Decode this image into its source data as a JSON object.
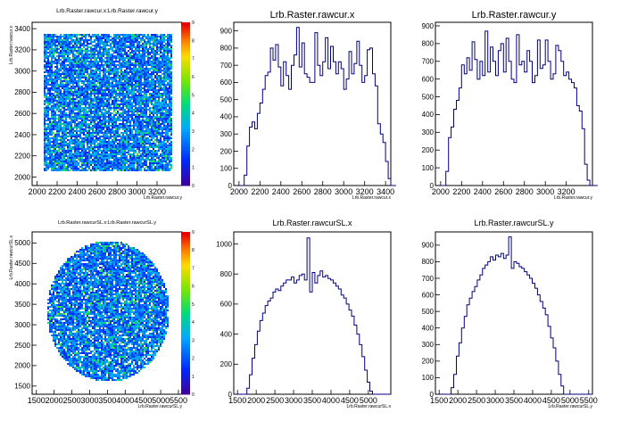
{
  "chart_data": [
    {
      "type": "heatmap",
      "title": "Lrb.Raster.rawcur.x:Lrb.Raster.rawcur.y",
      "xlabel": "Lrb.Raster.rawcur.y",
      "ylabel": "Lrb.Raster.rawcur.x",
      "xlim": [
        1950,
        3450
      ],
      "ylim": [
        1920,
        3460
      ],
      "x_ticks": [
        2000,
        2200,
        2400,
        2600,
        2800,
        3000,
        3200
      ],
      "x_tick_labels": [
        "2000",
        "2200",
        "2400",
        "2600",
        "2800",
        "3000",
        "3200"
      ],
      "y_ticks": [
        2000,
        2200,
        2400,
        2600,
        2800,
        3000,
        3200,
        3400
      ],
      "y_tick_labels": [
        "2000",
        "2200",
        "2400",
        "2600",
        "2800",
        "3000",
        "3200",
        "3400"
      ],
      "region": {
        "shape": "rect",
        "x": [
          2050,
          3350
        ],
        "y": [
          2060,
          3360
        ]
      },
      "colorbar": {
        "min": 0,
        "max": 9,
        "ticks": [
          "0",
          "1",
          "2",
          "3",
          "4",
          "5",
          "6",
          "7",
          "8",
          "9"
        ]
      },
      "grid": false
    },
    {
      "type": "histogram",
      "title": "Lrb.Raster.rawcur.x",
      "xlabel": "Lrb.Raster.rawcur.x",
      "xlim": [
        1950,
        3450
      ],
      "ylim": [
        0,
        950
      ],
      "x_ticks": [
        2000,
        2200,
        2400,
        2600,
        2800,
        3000,
        3200,
        3400
      ],
      "x_tick_labels": [
        "2000",
        "2200",
        "2400",
        "2600",
        "2800",
        "3000",
        "3200",
        "3400"
      ],
      "y_ticks": [
        0,
        100,
        200,
        300,
        400,
        500,
        600,
        700,
        800,
        900
      ],
      "y_tick_labels": [
        "0",
        "100",
        "200",
        "300",
        "400",
        "500",
        "600",
        "700",
        "800",
        "900"
      ],
      "bins": {
        "start": 2000,
        "width": 25
      },
      "values": [
        0,
        0,
        60,
        230,
        340,
        370,
        330,
        420,
        480,
        560,
        640,
        660,
        800,
        730,
        820,
        690,
        580,
        720,
        640,
        560,
        700,
        760,
        920,
        690,
        830,
        650,
        630,
        600,
        600,
        890,
        700,
        640,
        720,
        860,
        680,
        810,
        720,
        650,
        720,
        680,
        560,
        620,
        780,
        650,
        710,
        840,
        700,
        600,
        640,
        790,
        800,
        650,
        580,
        360,
        300,
        250,
        140,
        40,
        0,
        0
      ],
      "grid": false
    },
    {
      "type": "histogram",
      "title": "Lrb.Raster.rawcur.y",
      "xlabel": "Lrb.Raster.rawcur.y",
      "xlim": [
        1950,
        3450
      ],
      "ylim": [
        0,
        920
      ],
      "x_ticks": [
        2000,
        2200,
        2400,
        2600,
        2800,
        3000,
        3200
      ],
      "x_tick_labels": [
        "2000",
        "2200",
        "2400",
        "2600",
        "2800",
        "3000",
        "3200"
      ],
      "y_ticks": [
        0,
        100,
        200,
        300,
        400,
        500,
        600,
        700,
        800,
        900
      ],
      "y_tick_labels": [
        "0",
        "100",
        "200",
        "300",
        "400",
        "500",
        "600",
        "700",
        "800",
        "900"
      ],
      "bins": {
        "start": 2000,
        "width": 25
      },
      "values": [
        0,
        0,
        80,
        270,
        330,
        430,
        480,
        550,
        680,
        630,
        720,
        650,
        810,
        710,
        600,
        700,
        620,
        870,
        640,
        780,
        700,
        620,
        760,
        800,
        640,
        830,
        700,
        600,
        580,
        850,
        680,
        700,
        640,
        760,
        700,
        580,
        620,
        820,
        660,
        680,
        820,
        700,
        600,
        630,
        790,
        760,
        700,
        620,
        640,
        600,
        580,
        550,
        450,
        420,
        320,
        120,
        30,
        0,
        0,
        0
      ],
      "grid": false
    },
    {
      "type": "heatmap",
      "title": "Lrb.Raster.rawcurSL.x:Lrb.Raster.rawcurSL.y",
      "xlabel": "Lrb.Raster.rawcurSL.y",
      "ylabel": "Lrb.Raster.rawcurSL.x",
      "xlim": [
        1380,
        5600
      ],
      "ylim": [
        1300,
        5270
      ],
      "x_ticks": [
        1500,
        2000,
        2500,
        3000,
        3500,
        4000,
        4500,
        5000,
        5500
      ],
      "x_tick_labels": [
        "1500",
        "2000",
        "2500",
        "3000",
        "3500",
        "4000",
        "4500",
        "5000",
        "5500"
      ],
      "y_ticks": [
        1500,
        2000,
        2500,
        3000,
        3500,
        4000,
        4500,
        5000
      ],
      "y_tick_labels": [
        "1500",
        "2000",
        "2500",
        "3000",
        "3500",
        "4000",
        "4500",
        "5000"
      ],
      "region": {
        "shape": "circle",
        "cx": 3500,
        "cy": 3350,
        "r": 1720
      },
      "colorbar": {
        "min": 0,
        "max": 9,
        "ticks": [
          "0",
          "1",
          "2",
          "3",
          "4",
          "5",
          "6",
          "7",
          "8",
          "9"
        ]
      },
      "grid": false
    },
    {
      "type": "histogram",
      "title": "Lrb.Raster.rawcurSL.x",
      "xlabel": "Lrb.Raster.rawcurSL.x",
      "xlim": [
        1400,
        5600
      ],
      "ylim": [
        0,
        1080
      ],
      "x_ticks": [
        1500,
        2000,
        2500,
        3000,
        3500,
        4000,
        4500,
        5000
      ],
      "x_tick_labels": [
        "1500",
        "2000",
        "2500",
        "3000",
        "3500",
        "4000",
        "4500",
        "5000"
      ],
      "y_ticks": [
        0,
        200,
        400,
        600,
        800,
        1000
      ],
      "y_tick_labels": [
        "0",
        "200",
        "400",
        "600",
        "800",
        "1000"
      ],
      "bins": {
        "start": 1400,
        "width": 70
      },
      "values": [
        0,
        0,
        0,
        0,
        0,
        40,
        130,
        240,
        330,
        420,
        490,
        540,
        590,
        620,
        640,
        680,
        700,
        690,
        720,
        740,
        760,
        760,
        780,
        740,
        760,
        790,
        800,
        760,
        1040,
        680,
        810,
        740,
        790,
        820,
        780,
        790,
        770,
        760,
        740,
        720,
        700,
        660,
        640,
        600,
        560,
        520,
        460,
        400,
        330,
        250,
        160,
        80,
        20,
        0,
        0,
        0,
        0,
        0,
        0,
        0
      ],
      "grid": false
    },
    {
      "type": "histogram",
      "title": "Lrb.Raster.rawcurSL.y",
      "xlabel": "Lrb.Raster.rawcurSL.y",
      "xlim": [
        1400,
        5600
      ],
      "ylim": [
        0,
        980
      ],
      "x_ticks": [
        1500,
        2000,
        2500,
        3000,
        3500,
        4000,
        4500,
        5000,
        5500
      ],
      "x_tick_labels": [
        "1500",
        "2000",
        "2500",
        "3000",
        "3500",
        "4000",
        "4500",
        "5000",
        "5500"
      ],
      "y_ticks": [
        0,
        100,
        200,
        300,
        400,
        500,
        600,
        700,
        800,
        900
      ],
      "y_tick_labels": [
        "0",
        "100",
        "200",
        "300",
        "400",
        "500",
        "600",
        "700",
        "800",
        "900"
      ],
      "bins": {
        "start": 1400,
        "width": 70
      },
      "values": [
        0,
        0,
        0,
        0,
        0,
        0,
        40,
        120,
        230,
        310,
        400,
        470,
        540,
        580,
        620,
        650,
        690,
        720,
        760,
        780,
        800,
        830,
        810,
        840,
        830,
        850,
        820,
        840,
        950,
        760,
        800,
        790,
        770,
        760,
        740,
        720,
        700,
        670,
        640,
        600,
        560,
        520,
        480,
        410,
        340,
        280,
        200,
        120,
        50,
        0,
        0,
        0,
        0,
        0,
        0,
        0,
        0,
        0,
        0,
        0
      ],
      "grid": false
    }
  ],
  "colors": {
    "line": "#000080",
    "frame": "#000000",
    "background": "#ffffff"
  }
}
